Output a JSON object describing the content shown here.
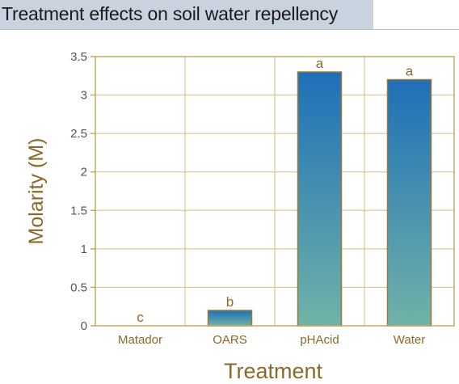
{
  "page": {
    "title": "Treatment effects on soil water repellency"
  },
  "chart_data": {
    "type": "bar",
    "title": "",
    "xlabel": "Treatment",
    "ylabel": "Molarity (M)",
    "categories": [
      "Matador",
      "OARS",
      "pHAcid",
      "Water"
    ],
    "values": [
      0,
      0.2,
      3.3,
      3.2
    ],
    "data_labels": [
      "c",
      "b",
      "a",
      "a"
    ],
    "ylim": [
      0,
      3.5
    ],
    "yticks": [
      0,
      0.5,
      1,
      1.5,
      2,
      2.5,
      3,
      3.5
    ],
    "ytick_labels": [
      "0",
      "0.5",
      "1",
      "1.5",
      "2",
      "2.5",
      "3",
      "3.5"
    ],
    "grid": true,
    "legend": "none",
    "colors": {
      "bar_top": "#1f6fb8",
      "bar_bottom": "#6fb3a8",
      "bar_edge": "#9a7a36",
      "frame": "#c9a862",
      "grid": "#d2bd8c",
      "text_accent": "#8a6a2c",
      "title_band": "#c9d3e0"
    }
  }
}
